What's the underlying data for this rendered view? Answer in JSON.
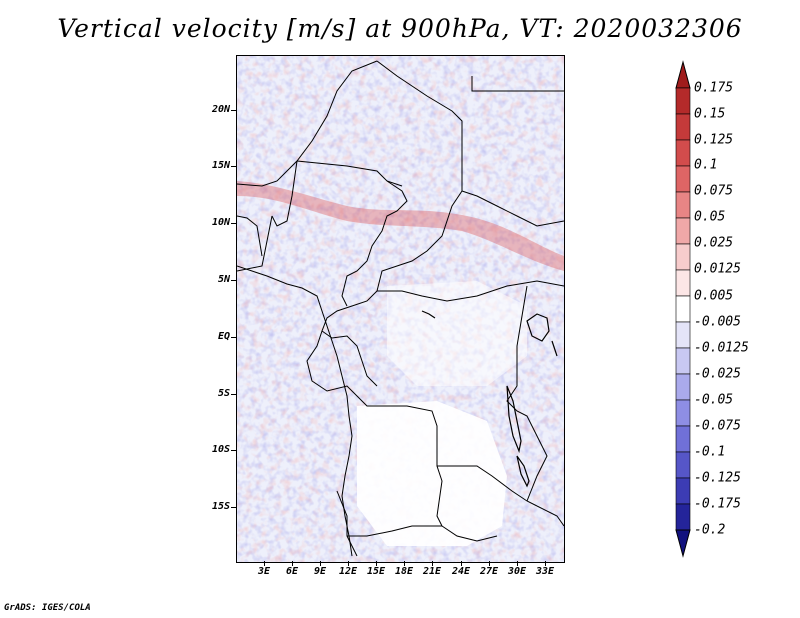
{
  "title": "Vertical velocity [m/s] at 900hPa, VT: 2020032306",
  "footer": "GrADS: IGES/COLA",
  "map": {
    "lat_labels": [
      "20N",
      "15N",
      "10N",
      "5N",
      "EQ",
      "5S",
      "10S",
      "15S"
    ],
    "lat_values": [
      20,
      15,
      10,
      5,
      0,
      -5,
      -10,
      -15
    ],
    "lon_labels": [
      "3E",
      "6E",
      "9E",
      "12E",
      "15E",
      "18E",
      "21E",
      "24E",
      "27E",
      "30E",
      "33E"
    ],
    "lon_values": [
      3,
      6,
      9,
      12,
      15,
      18,
      21,
      24,
      27,
      30,
      33
    ]
  },
  "colorbar": {
    "labels": [
      "0.175",
      "0.15",
      "0.125",
      "0.1",
      "0.075",
      "0.05",
      "0.025",
      "0.0125",
      "0.005",
      "-0.005",
      "-0.0125",
      "-0.025",
      "-0.05",
      "-0.075",
      "-0.1",
      "-0.125",
      "-0.175",
      "-0.2"
    ],
    "colors": [
      "#a01c1c",
      "#b42a2a",
      "#c43a3a",
      "#d24c4c",
      "#de6565",
      "#e88585",
      "#f0a8a8",
      "#f7cccc",
      "#fce6e6",
      "#ffffff",
      "#e4e4f8",
      "#c8c8f2",
      "#aaaaec",
      "#8e8ee4",
      "#7070d8",
      "#5656c8",
      "#3c3cb4",
      "#24249a",
      "#12127e"
    ]
  }
}
